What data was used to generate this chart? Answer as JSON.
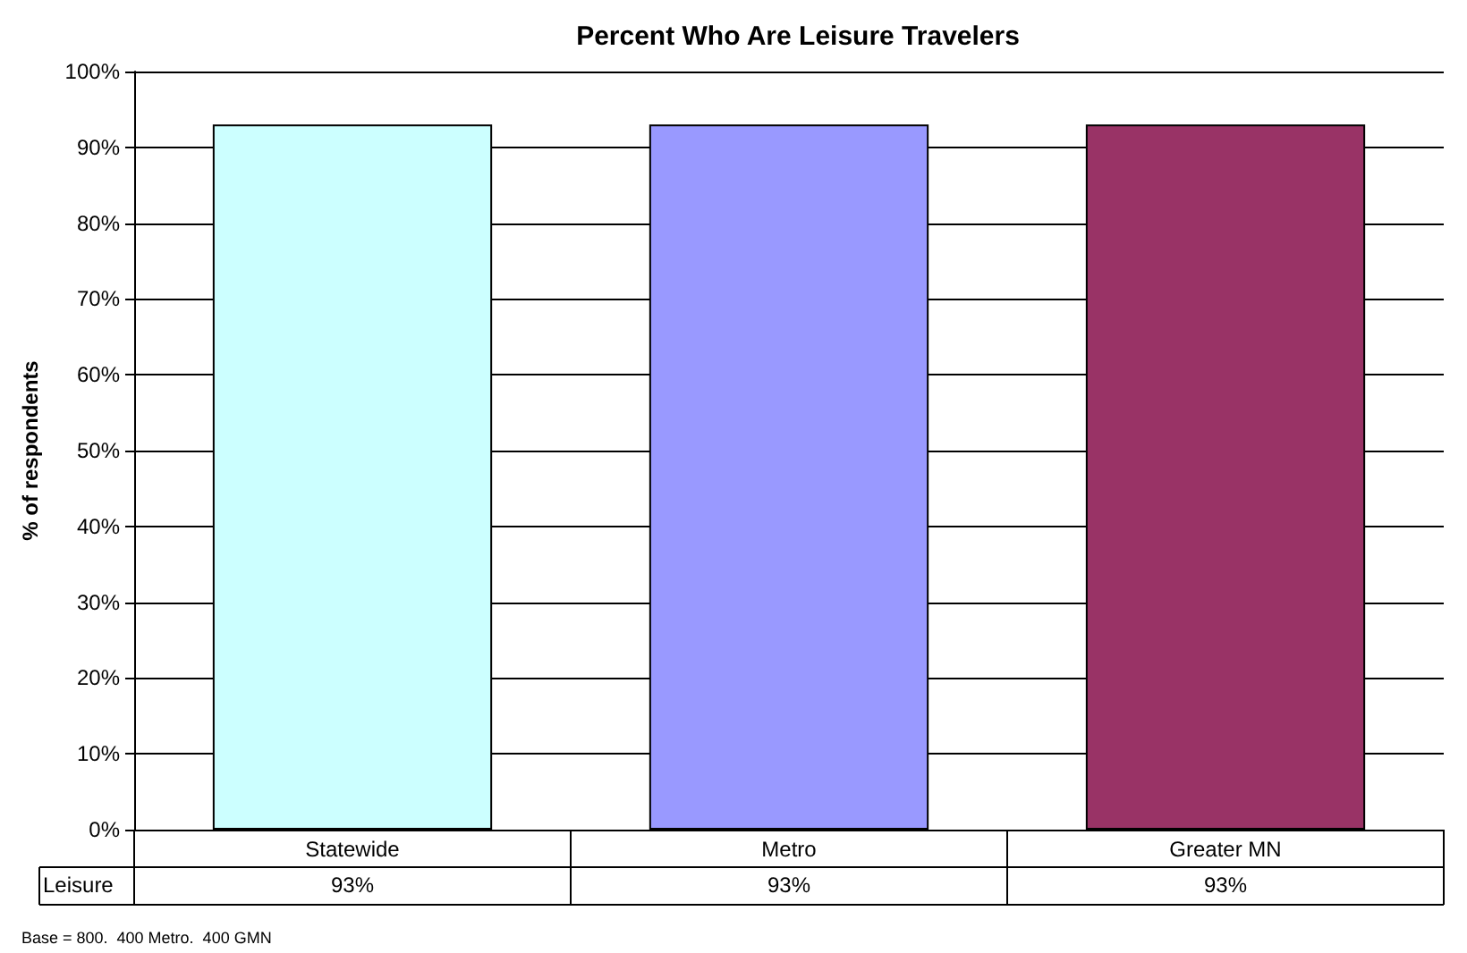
{
  "chart_data": {
    "type": "bar",
    "title": "Percent Who Are Leisure Travelers",
    "ylabel": "% of respondents",
    "categories": [
      "Statewide",
      "Metro",
      "Greater MN"
    ],
    "series": [
      {
        "name": "Leisure",
        "colors": [
          "#ccffff",
          "#9999ff",
          "#993366"
        ],
        "values": [
          93,
          93,
          93
        ],
        "value_labels": [
          "93%",
          "93%",
          "93%"
        ]
      }
    ],
    "ylim": [
      0,
      100
    ],
    "yticks": [
      {
        "value": 0,
        "label": "0%"
      },
      {
        "value": 10,
        "label": "10%"
      },
      {
        "value": 20,
        "label": "20%"
      },
      {
        "value": 30,
        "label": "30%"
      },
      {
        "value": 40,
        "label": "40%"
      },
      {
        "value": 50,
        "label": "50%"
      },
      {
        "value": 60,
        "label": "60%"
      },
      {
        "value": 70,
        "label": "70%"
      },
      {
        "value": 80,
        "label": "80%"
      },
      {
        "value": 90,
        "label": "90%"
      },
      {
        "value": 100,
        "label": "100%"
      }
    ],
    "grid": true,
    "legend": "bottom left",
    "annotations": [
      "Base = 800.  400 Metro.  400 GMN"
    ]
  }
}
